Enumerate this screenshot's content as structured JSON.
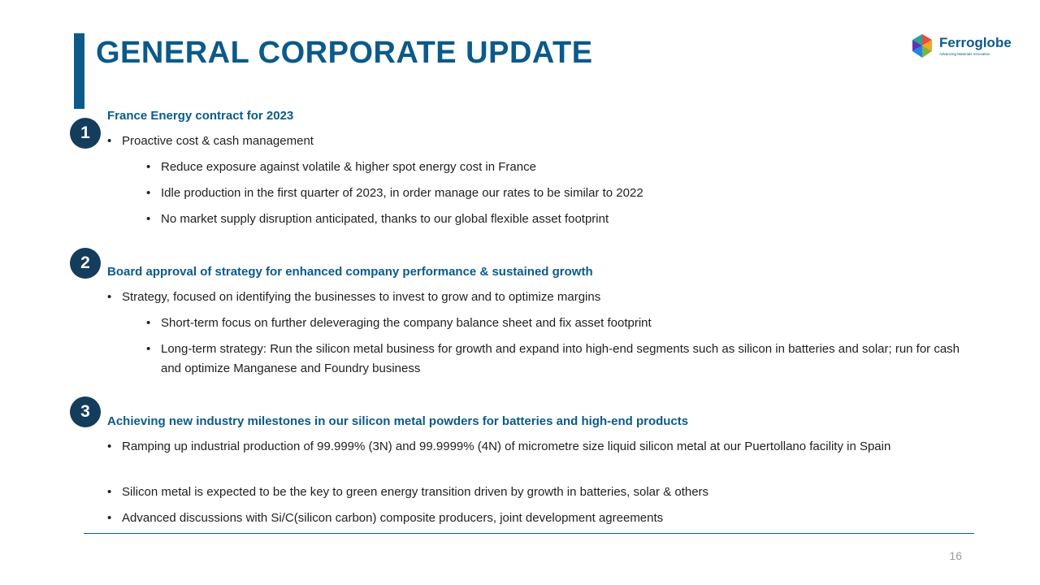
{
  "slide": {
    "title": "GENERAL CORPORATE UPDATE",
    "page_number": "16"
  },
  "logo": {
    "name": "Ferroglobe",
    "tagline": "Advancing Materials Innovation"
  },
  "sections": [
    {
      "number": "1",
      "title": "France Energy contract for 2023",
      "bullets": [
        {
          "text": "Proactive cost & cash management",
          "sub": [
            "Reduce exposure against volatile & higher spot energy cost in France",
            "Idle production in the first quarter of 2023, in order manage our rates to be similar to 2022",
            "No market supply disruption anticipated, thanks to our global flexible asset footprint"
          ]
        }
      ]
    },
    {
      "number": "2",
      "title": "Board approval of strategy for enhanced company performance & sustained growth",
      "bullets": [
        {
          "text": "Strategy, focused on identifying the businesses to invest to grow and to optimize margins",
          "sub": [
            "Short-term focus on further deleveraging the company balance sheet and fix asset footprint",
            "Long-term strategy: Run the silicon metal business for growth and expand into high-end segments such as silicon in batteries and solar; run for cash and optimize Manganese and Foundry business"
          ]
        }
      ]
    },
    {
      "number": "3",
      "title": "Achieving new industry milestones in our silicon metal powders for batteries and high-end products",
      "bullets": [
        {
          "text": "Ramping up industrial production of 99.999% (3N) and 99.9999% (4N) of micrometre size liquid silicon metal at our Puertollano facility in Spain"
        },
        {
          "text": "Silicon metal is expected to be the key to green energy transition driven by growth in batteries, solar & others"
        },
        {
          "text": "Advanced discussions with Si/C(silicon carbon) composite producers, joint development agreements"
        }
      ]
    }
  ]
}
